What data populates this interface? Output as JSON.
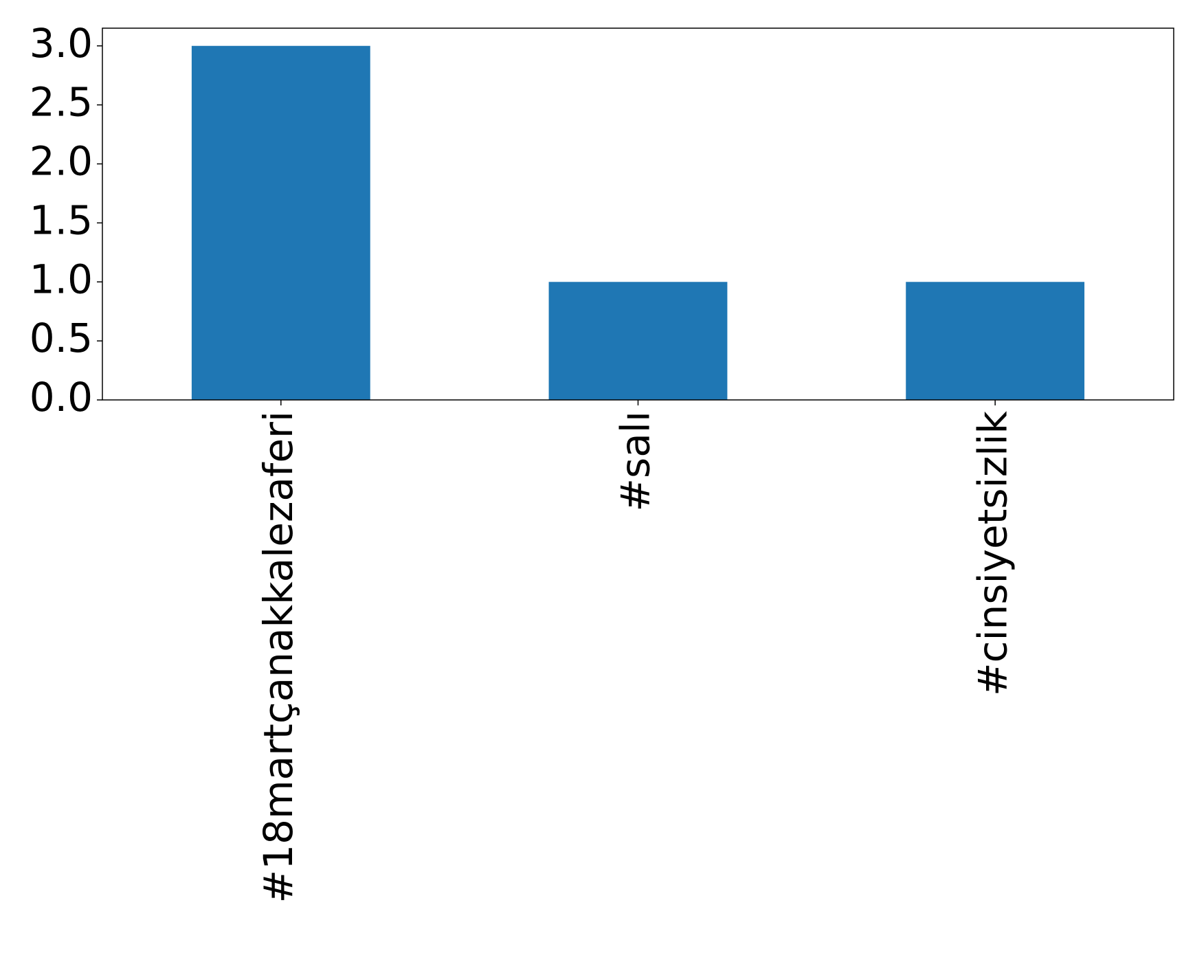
{
  "chart_data": {
    "type": "bar",
    "categories": [
      "#18martçanakkalezaferi",
      "#salı",
      "#cinsiyetsizlik"
    ],
    "values": [
      3,
      1,
      1
    ],
    "color": "#1f77b4",
    "ylim": [
      0,
      3.15
    ],
    "yticks": [
      {
        "value": 0,
        "label": "0.0"
      },
      {
        "value": 0.5,
        "label": "0.5"
      },
      {
        "value": 1,
        "label": "1.0"
      },
      {
        "value": 1.5,
        "label": "1.5"
      },
      {
        "value": 2,
        "label": "2.0"
      },
      {
        "value": 2.5,
        "label": "2.5"
      },
      {
        "value": 3,
        "label": "3.0"
      }
    ],
    "grid": false
  }
}
